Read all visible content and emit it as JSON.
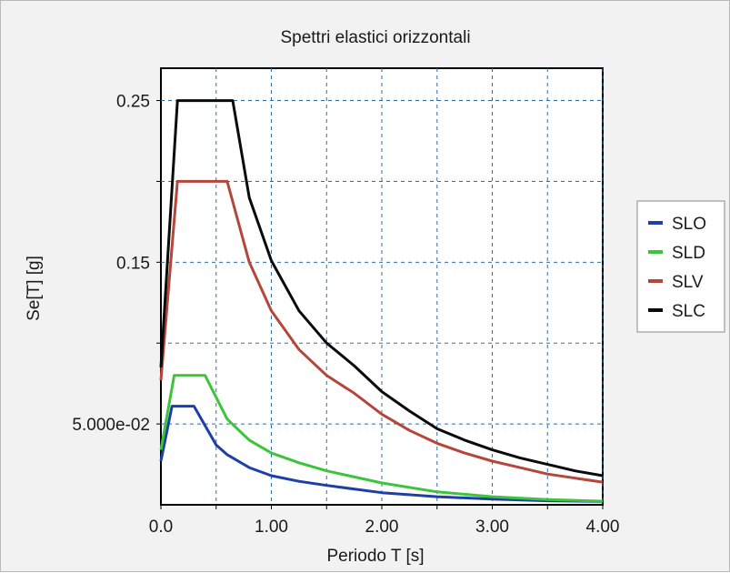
{
  "chart_data": {
    "type": "line",
    "title": "Spettri elastici orizzontali",
    "xlabel": "Periodo T [s]",
    "ylabel": "Se[T] [g]",
    "xlim": [
      0,
      4
    ],
    "ylim": [
      0,
      0.27
    ],
    "x_ticks": [
      0,
      0.5,
      1,
      1.5,
      2,
      2.5,
      3,
      3.5,
      4
    ],
    "x_tick_labels": [
      {
        "value": 0,
        "label": "0.0"
      },
      {
        "value": 1,
        "label": "1.00"
      },
      {
        "value": 2,
        "label": "2.00"
      },
      {
        "value": 3,
        "label": "3.00"
      },
      {
        "value": 4,
        "label": "4.00"
      }
    ],
    "y_ticks": [
      0.05,
      0.1,
      0.15,
      0.2,
      0.25
    ],
    "y_tick_labels": [
      {
        "value": 0.05,
        "label": "5.000e-02"
      },
      {
        "value": 0.15,
        "label": "0.15"
      },
      {
        "value": 0.25,
        "label": "0.25"
      }
    ],
    "grid": true,
    "legend_position": "right",
    "series": [
      {
        "name": "SLO",
        "color": "#1f3fa8",
        "x": [
          0,
          0.1,
          0.3,
          0.5,
          0.6,
          0.8,
          1.0,
          1.25,
          1.5,
          2.0,
          2.5,
          3.0,
          3.5,
          4.0
        ],
        "y": [
          0.027,
          0.061,
          0.061,
          0.037,
          0.031,
          0.023,
          0.018,
          0.0145,
          0.012,
          0.0075,
          0.005,
          0.0035,
          0.0025,
          0.002
        ]
      },
      {
        "name": "SLD",
        "color": "#3cc43c",
        "x": [
          0,
          0.12,
          0.4,
          0.6,
          0.8,
          1.0,
          1.25,
          1.5,
          2.0,
          2.5,
          3.0,
          3.5,
          4.0
        ],
        "y": [
          0.034,
          0.08,
          0.08,
          0.053,
          0.04,
          0.032,
          0.026,
          0.021,
          0.0135,
          0.008,
          0.005,
          0.0032,
          0.0022
        ]
      },
      {
        "name": "SLV",
        "color": "#b4463a",
        "x": [
          0,
          0.15,
          0.6,
          0.8,
          1.0,
          1.25,
          1.5,
          1.75,
          2.0,
          2.25,
          2.5,
          2.75,
          3.0,
          3.25,
          3.5,
          3.75,
          4.0
        ],
        "y": [
          0.077,
          0.2,
          0.2,
          0.15,
          0.12,
          0.096,
          0.08,
          0.069,
          0.056,
          0.046,
          0.038,
          0.032,
          0.027,
          0.023,
          0.019,
          0.0165,
          0.014
        ]
      },
      {
        "name": "SLC",
        "color": "#0a0a0a",
        "x": [
          0,
          0.15,
          0.65,
          0.8,
          1.0,
          1.25,
          1.5,
          1.75,
          2.0,
          2.25,
          2.5,
          2.75,
          3.0,
          3.25,
          3.5,
          3.75,
          4.0
        ],
        "y": [
          0.085,
          0.25,
          0.25,
          0.19,
          0.151,
          0.12,
          0.1,
          0.086,
          0.07,
          0.058,
          0.047,
          0.04,
          0.034,
          0.029,
          0.025,
          0.021,
          0.018
        ]
      }
    ]
  }
}
